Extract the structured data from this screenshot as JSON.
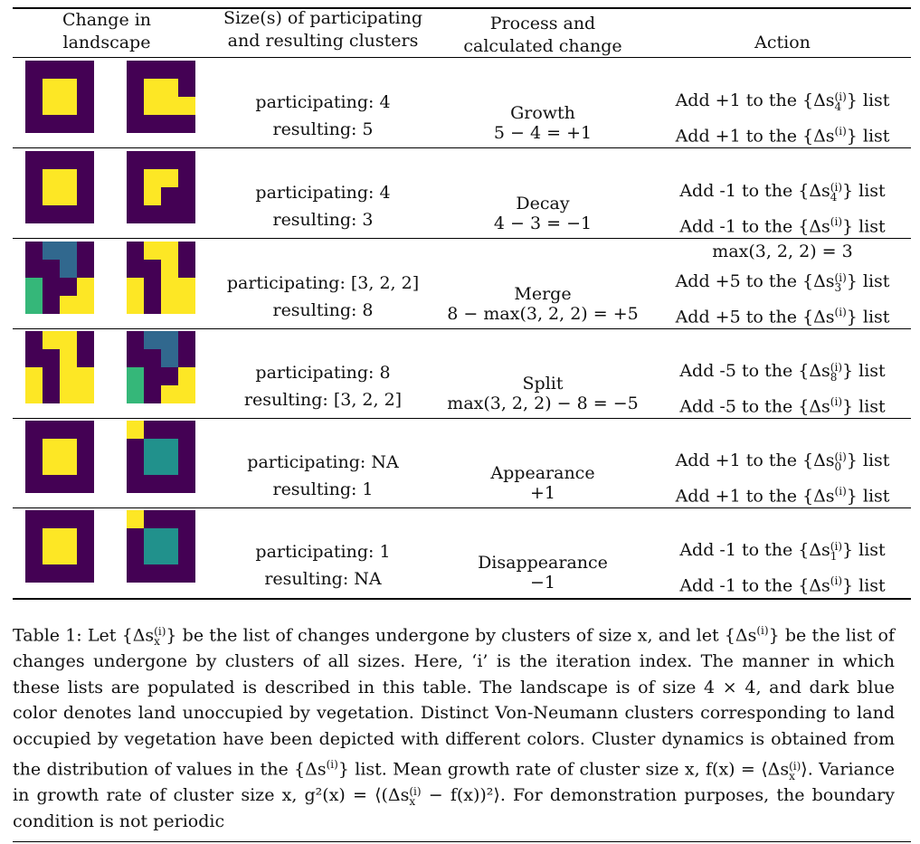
{
  "header": {
    "col1": [
      "Change in",
      "landscape"
    ],
    "col2": [
      "Size(s) of participating",
      "and resulting clusters"
    ],
    "col3": [
      "Process and",
      "calculated change"
    ],
    "col4": "Action"
  },
  "palette": {
    "D": "#440154",
    "Y": "#fde725",
    "B": "#31688e",
    "G": "#35b779",
    "T": "#21918c"
  },
  "rows": [
    {
      "before": [
        "DDDD",
        "DYYD",
        "DYYD",
        "DDDD"
      ],
      "after": [
        "DDDD",
        "DYYD",
        "DYYY",
        "DDDD"
      ],
      "participating": "participating: 4",
      "resulting": "resulting: 5",
      "process": "Growth",
      "calc": "5 − 4 = +1",
      "pre": "",
      "action_a_prefix": "Add +1 to the {Δs",
      "action_a_sub": "4",
      "action_a_suffix": "} list",
      "action_b_prefix": "Add +1 to the {Δs",
      "action_b_suffix": "} list"
    },
    {
      "before": [
        "DDDD",
        "DYYD",
        "DYYD",
        "DDDD"
      ],
      "after": [
        "DDDD",
        "DYYD",
        "DYDD",
        "DDDD"
      ],
      "participating": "participating: 4",
      "resulting": "resulting: 3",
      "process": "Decay",
      "calc": "4 − 3 = −1",
      "pre": "",
      "action_a_prefix": "Add -1 to the {Δs",
      "action_a_sub": "4",
      "action_a_suffix": "} list",
      "action_b_prefix": "Add -1 to the {Δs",
      "action_b_suffix": "} list"
    },
    {
      "before": [
        "DBBD",
        "DDBD",
        "GDDY",
        "GDYY"
      ],
      "after": [
        "DYYD",
        "DDYD",
        "YDYY",
        "YDYY"
      ],
      "participating": "participating: [3, 2, 2]",
      "resulting": "resulting: 8",
      "process": "Merge",
      "calc": "8 − max(3, 2, 2) = +5",
      "pre": "max(3, 2, 2) = 3",
      "action_a_prefix": "Add +5 to the {Δs",
      "action_a_sub": "3",
      "action_a_suffix": "} list",
      "action_b_prefix": "Add +5 to the {Δs",
      "action_b_suffix": "} list"
    },
    {
      "before": [
        "DYYD",
        "DDYD",
        "YDYY",
        "YDYY"
      ],
      "after": [
        "DBBD",
        "DDBD",
        "GDDY",
        "GDYY"
      ],
      "participating": "participating: 8",
      "resulting": "resulting: [3, 2, 2]",
      "process": "Split",
      "calc": "max(3, 2, 2) − 8 = −5",
      "pre": "",
      "action_a_prefix": "Add -5 to the {Δs",
      "action_a_sub": "8",
      "action_a_suffix": "} list",
      "action_b_prefix": "Add -5 to the {Δs",
      "action_b_suffix": "} list"
    },
    {
      "before": [
        "DDDD",
        "DYYD",
        "DYYD",
        "DDDD"
      ],
      "after": [
        "YDDD",
        "DTTD",
        "DTTD",
        "DDDD"
      ],
      "participating": "participating: NA",
      "resulting": "resulting: 1",
      "process": "Appearance",
      "calc": "+1",
      "pre": "",
      "action_a_prefix": "Add +1 to the {Δs",
      "action_a_sub": "0",
      "action_a_suffix": "} list",
      "action_b_prefix": "Add +1 to the {Δs",
      "action_b_suffix": "} list"
    },
    {
      "before": [
        "DDDD",
        "DYYD",
        "DYYD",
        "DDDD"
      ],
      "after": [
        "YDDD",
        "DTTD",
        "DTTD",
        "DDDD"
      ],
      "participating": "participating: 1",
      "resulting": "resulting: NA",
      "process": "Disappearance",
      "calc": "−1",
      "pre": "",
      "action_a_prefix": "Add -1 to the {Δs",
      "action_a_sub": "1",
      "action_a_suffix": "} list",
      "action_b_prefix": "Add -1 to the {Δs",
      "action_b_suffix": "} list"
    }
  ],
  "caption": {
    "p1": "Table 1: Let {Δs",
    "p1_sub": "x",
    "p2": "} be the list of changes undergone by clusters of size x, and let {Δs",
    "p3": "} be the list of changes undergone by clusters of all sizes. Here, ‘i’ is the iteration index. The manner in which these lists are populated is described in this table. The landscape is of size 4 × 4, and dark blue color denotes land unoccupied by vegetation. Distinct Von-Neumann clusters corresponding to land occupied by vegetation have been depicted with different colors. Cluster dynamics is obtained from the distribution of values in the {Δs",
    "p4": "} list. Mean growth rate of cluster size x, f(x) = ⟨Δs",
    "p4_sub": "x",
    "p5": "⟩. Variance in growth rate of cluster size x, g²(x) = ⟨(Δs",
    "p5_sub": "x",
    "p6": " − f(x))²⟩. For demonstration purposes, the boundary condition is not periodic"
  },
  "sup_i": "(i)"
}
